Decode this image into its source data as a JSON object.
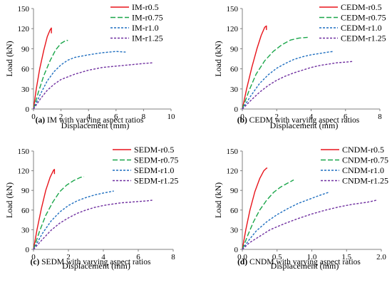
{
  "chart_data": [
    {
      "type": "line",
      "caption_letter": "(a)",
      "caption_text": " IM with varying aspect ratios",
      "xlabel": "Displacement (mm)",
      "ylabel": "Load (kN)",
      "xlim": [
        0,
        10
      ],
      "ylim": [
        0,
        150
      ],
      "xticks": [
        0,
        2,
        4,
        6,
        8,
        10
      ],
      "yticks": [
        0,
        30,
        60,
        90,
        120,
        150
      ],
      "xtick_labels": [
        "0",
        "2",
        "4",
        "6",
        "8",
        "10"
      ],
      "ytick_labels": [
        "0",
        "30",
        "60",
        "90",
        "120",
        "150"
      ],
      "grid": false,
      "legend_position": "top-right",
      "series": [
        {
          "name": "IM-r0.5",
          "color": "#e8141b",
          "dash": "solid",
          "points": [
            [
              0,
              0
            ],
            [
              0.2,
              30
            ],
            [
              0.45,
              60
            ],
            [
              0.75,
              88
            ],
            [
              1.0,
              108
            ],
            [
              1.2,
              118
            ],
            [
              1.3,
              121
            ],
            [
              1.3,
              113
            ]
          ]
        },
        {
          "name": "IM-r0.75",
          "color": "#1aa64a",
          "dash": "long",
          "points": [
            [
              0,
              0
            ],
            [
              0.35,
              25
            ],
            [
              0.75,
              50
            ],
            [
              1.2,
              72
            ],
            [
              1.6,
              88
            ],
            [
              2.0,
              98
            ],
            [
              2.4,
              103
            ],
            [
              2.5,
              102
            ]
          ]
        },
        {
          "name": "IM-r1.0",
          "color": "#1f6fc0",
          "dash": "short",
          "points": [
            [
              0,
              0
            ],
            [
              0.5,
              22
            ],
            [
              1.0,
              42
            ],
            [
              1.5,
              56
            ],
            [
              2.0,
              66
            ],
            [
              2.5,
              73
            ],
            [
              3.0,
              77
            ],
            [
              4.0,
              81
            ],
            [
              5.0,
              84
            ],
            [
              6.0,
              86
            ],
            [
              6.7,
              85
            ]
          ]
        },
        {
          "name": "IM-r1.25",
          "color": "#7030a0",
          "dash": "short",
          "points": [
            [
              0,
              0
            ],
            [
              0.5,
              15
            ],
            [
              1.0,
              28
            ],
            [
              1.5,
              37
            ],
            [
              2.0,
              44
            ],
            [
              3.0,
              52
            ],
            [
              4.0,
              58
            ],
            [
              5.0,
              62
            ],
            [
              6.0,
              64
            ],
            [
              7.0,
              66
            ],
            [
              8.0,
              68
            ],
            [
              8.7,
              69
            ]
          ]
        }
      ]
    },
    {
      "type": "line",
      "caption_letter": "(b)",
      "caption_text": " CEDM with varying aspect ratios",
      "xlabel": "Displacement (mm)",
      "ylabel": "Load (kN)",
      "xlim": [
        0,
        8
      ],
      "ylim": [
        0,
        150
      ],
      "xticks": [
        0,
        2,
        4,
        6,
        8
      ],
      "yticks": [
        0,
        30,
        60,
        90,
        120,
        150
      ],
      "xtick_labels": [
        "0",
        "2",
        "4",
        "6",
        "8"
      ],
      "ytick_labels": [
        "0",
        "30",
        "60",
        "90",
        "120",
        "150"
      ],
      "grid": false,
      "legend_position": "top-right",
      "series": [
        {
          "name": "CEDM-r0.5",
          "color": "#e8141b",
          "dash": "solid",
          "points": [
            [
              0,
              0
            ],
            [
              0.25,
              30
            ],
            [
              0.55,
              62
            ],
            [
              0.85,
              90
            ],
            [
              1.1,
              110
            ],
            [
              1.3,
              122
            ],
            [
              1.4,
              124
            ],
            [
              1.4,
              118
            ]
          ]
        },
        {
          "name": "CEDM-r0.75",
          "color": "#1aa64a",
          "dash": "long",
          "points": [
            [
              0,
              0
            ],
            [
              0.4,
              28
            ],
            [
              0.8,
              52
            ],
            [
              1.3,
              72
            ],
            [
              1.8,
              86
            ],
            [
              2.3,
              96
            ],
            [
              2.8,
              103
            ],
            [
              3.3,
              106
            ],
            [
              3.8,
              107
            ]
          ]
        },
        {
          "name": "CEDM-r1.0",
          "color": "#1f6fc0",
          "dash": "short",
          "points": [
            [
              0,
              0
            ],
            [
              0.5,
              20
            ],
            [
              1.0,
              38
            ],
            [
              1.5,
              51
            ],
            [
              2.0,
              61
            ],
            [
              2.5,
              68
            ],
            [
              3.0,
              74
            ],
            [
              3.5,
              78
            ],
            [
              4.0,
              81
            ],
            [
              4.5,
              83
            ],
            [
              5.0,
              85
            ],
            [
              5.3,
              86
            ]
          ]
        },
        {
          "name": "CEDM-r1.25",
          "color": "#7030a0",
          "dash": "short",
          "points": [
            [
              0,
              0
            ],
            [
              0.5,
              13
            ],
            [
              1.0,
              25
            ],
            [
              1.5,
              35
            ],
            [
              2.0,
              43
            ],
            [
              2.5,
              49
            ],
            [
              3.0,
              54
            ],
            [
              3.5,
              58
            ],
            [
              4.0,
              62
            ],
            [
              4.5,
              65
            ],
            [
              5.0,
              67
            ],
            [
              5.5,
              69
            ],
            [
              6.0,
              70
            ],
            [
              6.4,
              71
            ]
          ]
        }
      ]
    },
    {
      "type": "line",
      "caption_letter": "(c)",
      "caption_text": " SEDM with varying aspect ratios",
      "xlabel": "Displacement (mm)",
      "ylabel": "Load (kN)",
      "xlim": [
        0,
        8
      ],
      "ylim": [
        0,
        150
      ],
      "xticks": [
        0,
        2,
        4,
        6,
        8
      ],
      "yticks": [
        0,
        30,
        60,
        90,
        120,
        150
      ],
      "xtick_labels": [
        "0",
        "2",
        "4",
        "6",
        "8"
      ],
      "ytick_labels": [
        "0",
        "30",
        "60",
        "90",
        "120",
        "150"
      ],
      "grid": false,
      "legend_position": "top-right",
      "series": [
        {
          "name": "SEDM-r0.5",
          "color": "#e8141b",
          "dash": "solid",
          "points": [
            [
              0,
              0
            ],
            [
              0.2,
              30
            ],
            [
              0.45,
              62
            ],
            [
              0.7,
              90
            ],
            [
              0.95,
              110
            ],
            [
              1.15,
              121
            ],
            [
              1.2,
              122
            ],
            [
              1.2,
              115
            ]
          ]
        },
        {
          "name": "SEDM-r0.75",
          "color": "#1aa64a",
          "dash": "long",
          "points": [
            [
              0,
              0
            ],
            [
              0.35,
              28
            ],
            [
              0.7,
              52
            ],
            [
              1.1,
              72
            ],
            [
              1.5,
              88
            ],
            [
              1.9,
              98
            ],
            [
              2.3,
              105
            ],
            [
              2.7,
              110
            ],
            [
              2.9,
              111
            ]
          ]
        },
        {
          "name": "SEDM-r1.0",
          "color": "#1f6fc0",
          "dash": "short",
          "points": [
            [
              0,
              0
            ],
            [
              0.5,
              24
            ],
            [
              1.0,
              43
            ],
            [
              1.5,
              57
            ],
            [
              2.0,
              67
            ],
            [
              2.5,
              74
            ],
            [
              3.0,
              79
            ],
            [
              3.5,
              83
            ],
            [
              4.0,
              86
            ],
            [
              4.6,
              89
            ]
          ]
        },
        {
          "name": "SEDM-r1.25",
          "color": "#7030a0",
          "dash": "short",
          "points": [
            [
              0,
              0
            ],
            [
              0.5,
              15
            ],
            [
              1.0,
              29
            ],
            [
              1.5,
              40
            ],
            [
              2.0,
              48
            ],
            [
              2.5,
              55
            ],
            [
              3.0,
              60
            ],
            [
              3.5,
              64
            ],
            [
              4.0,
              67
            ],
            [
              4.5,
              69
            ],
            [
              5.0,
              71
            ],
            [
              5.5,
              72
            ],
            [
              6.0,
              73
            ],
            [
              6.5,
              74
            ],
            [
              6.8,
              75
            ]
          ]
        }
      ]
    },
    {
      "type": "line",
      "caption_letter": "(d)",
      "caption_text": " CNDM with varying aspect ratios",
      "xlabel": "Displacement (mm)",
      "ylabel": "Load (kN)",
      "xlim": [
        0,
        2
      ],
      "ylim": [
        0,
        150
      ],
      "xticks": [
        0,
        0.5,
        1,
        1.5,
        2
      ],
      "yticks": [
        0,
        30,
        60,
        90,
        120,
        150
      ],
      "xtick_labels": [
        "0.0",
        "0.5",
        "1.0",
        "1.5",
        "2.0"
      ],
      "ytick_labels": [
        "0",
        "30",
        "60",
        "90",
        "120",
        "150"
      ],
      "grid": false,
      "legend_position": "top-right",
      "series": [
        {
          "name": "CNDM-r0.5",
          "color": "#e8141b",
          "dash": "solid",
          "points": [
            [
              0,
              0
            ],
            [
              0.05,
              30
            ],
            [
              0.11,
              60
            ],
            [
              0.18,
              88
            ],
            [
              0.25,
              108
            ],
            [
              0.31,
              120
            ],
            [
              0.35,
              124
            ],
            [
              0.36,
              124
            ]
          ]
        },
        {
          "name": "CNDM-r0.75",
          "color": "#1aa64a",
          "dash": "long",
          "points": [
            [
              0,
              0
            ],
            [
              0.08,
              22
            ],
            [
              0.16,
              42
            ],
            [
              0.25,
              60
            ],
            [
              0.35,
              75
            ],
            [
              0.45,
              87
            ],
            [
              0.55,
              95
            ],
            [
              0.65,
              101
            ],
            [
              0.74,
              106
            ]
          ]
        },
        {
          "name": "CNDM-r1.0",
          "color": "#1f6fc0",
          "dash": "short",
          "points": [
            [
              0,
              0
            ],
            [
              0.1,
              15
            ],
            [
              0.2,
              28
            ],
            [
              0.35,
              42
            ],
            [
              0.5,
              53
            ],
            [
              0.65,
              62
            ],
            [
              0.8,
              70
            ],
            [
              0.95,
              76
            ],
            [
              1.1,
              82
            ],
            [
              1.24,
              87
            ]
          ]
        },
        {
          "name": "CNDM-r1.25",
          "color": "#7030a0",
          "dash": "short",
          "points": [
            [
              0,
              0
            ],
            [
              0.1,
              10
            ],
            [
              0.25,
              20
            ],
            [
              0.4,
              30
            ],
            [
              0.6,
              39
            ],
            [
              0.8,
              47
            ],
            [
              1.0,
              54
            ],
            [
              1.2,
              60
            ],
            [
              1.4,
              65
            ],
            [
              1.6,
              69
            ],
            [
              1.8,
              72
            ],
            [
              1.93,
              75
            ]
          ]
        }
      ]
    }
  ]
}
